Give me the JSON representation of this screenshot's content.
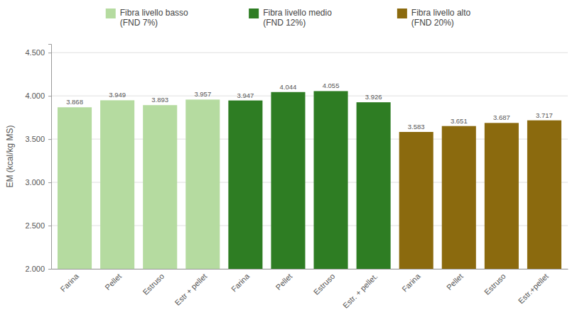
{
  "chart_data": {
    "type": "bar",
    "categories": [
      "Farina",
      "Pellet",
      "Estruso",
      "Estr + pellet",
      "Farina",
      "Pellet",
      "Estruso",
      "Estr. + pellet.",
      "Farina",
      "Pellet",
      "Estruso",
      "Estr.+pellet"
    ],
    "series": [
      {
        "name": "Fibra livello basso\n(FND 7%)",
        "color": "#b5dba0",
        "values": [
          3.868,
          3.949,
          3.893,
          3.957,
          null,
          null,
          null,
          null,
          null,
          null,
          null,
          null
        ]
      },
      {
        "name": "Fibra livello medio\n(FND 12%)",
        "color": "#2e7d23",
        "values": [
          null,
          null,
          null,
          null,
          3.947,
          4.044,
          4.055,
          3.926,
          null,
          null,
          null,
          null
        ]
      },
      {
        "name": "Fibra livello alto\n(FND 20%)",
        "color": "#8b6a0e",
        "values": [
          null,
          null,
          null,
          null,
          null,
          null,
          null,
          null,
          3.583,
          3.651,
          3.687,
          3.717
        ]
      }
    ],
    "y_label": "EM (kcal/kg MS)",
    "ylim": [
      2.0,
      4.6
    ],
    "yticks": [
      {
        "value": 2.0,
        "label": "2.000"
      },
      {
        "value": 2.5,
        "label": "2.500"
      },
      {
        "value": 3.0,
        "label": "3.000"
      },
      {
        "value": 3.5,
        "label": "3.500"
      },
      {
        "value": 4.0,
        "label": "4.000"
      },
      {
        "value": 4.5,
        "label": "4.500"
      }
    ],
    "grid": true,
    "legend": "top",
    "data_labels": true
  }
}
